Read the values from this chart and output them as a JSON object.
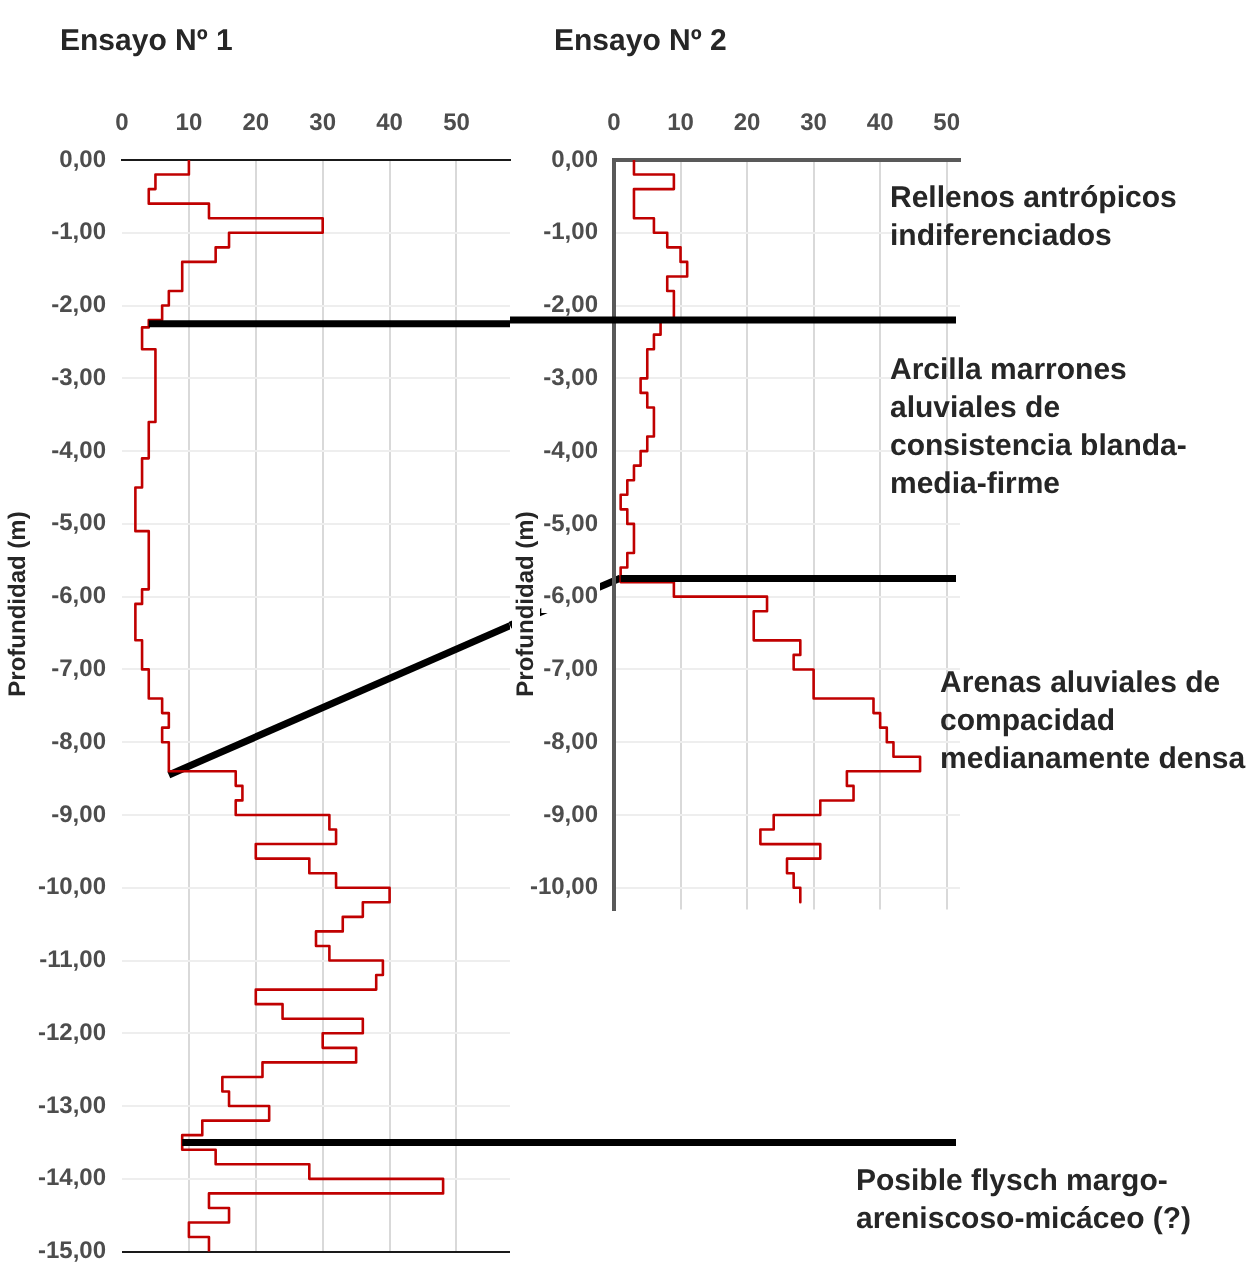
{
  "chart_data": [
    {
      "type": "line",
      "title": "Ensayo Nº 1",
      "ylabel": "Profundidad (m)",
      "xlim": [
        0,
        58
      ],
      "xticks": [
        0,
        10,
        20,
        30,
        40,
        50
      ],
      "ylim": [
        -15,
        0
      ],
      "yticks": [
        {
          "value": 0,
          "label": "0,00"
        },
        {
          "value": -1,
          "label": "-1,00"
        },
        {
          "value": -2,
          "label": "-2,00"
        },
        {
          "value": -3,
          "label": "-3,00"
        },
        {
          "value": -4,
          "label": "-4,00"
        },
        {
          "value": -5,
          "label": "-5,00"
        },
        {
          "value": -6,
          "label": "-6,00"
        },
        {
          "value": -7,
          "label": "-7,00"
        },
        {
          "value": -8,
          "label": "-8,00"
        },
        {
          "value": -9,
          "label": "-9,00"
        },
        {
          "value": -10,
          "label": "-10,00"
        },
        {
          "value": -11,
          "label": "-11,00"
        },
        {
          "value": -12,
          "label": "-12,00"
        },
        {
          "value": -13,
          "label": "-13,00"
        },
        {
          "value": -14,
          "label": "-14,00"
        },
        {
          "value": -15,
          "label": "-15,00"
        }
      ],
      "grid": true,
      "series": [
        {
          "color": "#c00000",
          "x": [
            10,
            10,
            5,
            5,
            4,
            4,
            13,
            13,
            30,
            30,
            16,
            16,
            14,
            14,
            9,
            9,
            7,
            7,
            6,
            6,
            4,
            4,
            3,
            3,
            5,
            5,
            4,
            4,
            3,
            3,
            2,
            2,
            4,
            4,
            3,
            3,
            2,
            2,
            3,
            3,
            4,
            4,
            6,
            6,
            7,
            7,
            6,
            6,
            7,
            7,
            17,
            17,
            18,
            18,
            17,
            17,
            31,
            31,
            32,
            32,
            20,
            20,
            28,
            28,
            32,
            32,
            40,
            40,
            36,
            36,
            33,
            33,
            29,
            29,
            31,
            31,
            39,
            39,
            38,
            38,
            20,
            20,
            24,
            24,
            36,
            36,
            30,
            30,
            35,
            35,
            21,
            21,
            15,
            15,
            16,
            16,
            22,
            22,
            12,
            12,
            9,
            9,
            14,
            14,
            28,
            28,
            48,
            48,
            13,
            13,
            16,
            16,
            10,
            10,
            13,
            13
          ],
          "values": [
            0,
            -0.2,
            -0.2,
            -0.4,
            -0.4,
            -0.6,
            -0.6,
            -0.8,
            -0.8,
            -1,
            -1,
            -1.2,
            -1.2,
            -1.4,
            -1.4,
            -1.8,
            -1.8,
            -2,
            -2,
            -2.2,
            -2.2,
            -2.3,
            -2.3,
            -2.6,
            -2.6,
            -3.6,
            -3.6,
            -4.1,
            -4.1,
            -4.5,
            -4.5,
            -5.1,
            -5.1,
            -5.9,
            -5.9,
            -6.1,
            -6.1,
            -6.6,
            -6.6,
            -7,
            -7,
            -7.4,
            -7.4,
            -7.6,
            -7.6,
            -7.8,
            -7.8,
            -8,
            -8,
            -8.4,
            -8.4,
            -8.6,
            -8.6,
            -8.8,
            -8.8,
            -9,
            -9,
            -9.2,
            -9.2,
            -9.4,
            -9.4,
            -9.6,
            -9.6,
            -9.8,
            -9.8,
            -10,
            -10,
            -10.2,
            -10.2,
            -10.4,
            -10.4,
            -10.6,
            -10.6,
            -10.8,
            -10.8,
            -11,
            -11,
            -11.2,
            -11.2,
            -11.4,
            -11.4,
            -11.6,
            -11.6,
            -11.8,
            -11.8,
            -12,
            -12,
            -12.2,
            -12.2,
            -12.4,
            -12.4,
            -12.6,
            -12.6,
            -12.8,
            -12.8,
            -13,
            -13,
            -13.2,
            -13.2,
            -13.4,
            -13.4,
            -13.6,
            -13.6,
            -13.8,
            -13.8,
            -14,
            -14,
            -14.2,
            -14.2,
            -14.4,
            -14.4,
            -14.6,
            -14.6,
            -14.8,
            -14.8,
            -15
          ]
        },
        {
          "type": "line",
          "color": "#000000",
          "x": [
            7,
            58
          ],
          "values": [
            -8.45,
            -6.4
          ]
        }
      ],
      "ref_lines": [
        {
          "axis": "y",
          "value": -2.25,
          "color": "#000000"
        },
        {
          "axis": "y",
          "value": -13.5,
          "color": "#000000"
        }
      ],
      "annotations": [
        "Posible flysch margo-\nareniscoso-micáceo (?)"
      ]
    },
    {
      "type": "line",
      "title": "Ensayo Nº 2",
      "ylabel": "Profundidad (m)",
      "xlim": [
        0,
        52
      ],
      "xticks": [
        0,
        10,
        20,
        30,
        40,
        50
      ],
      "ylim": [
        -10.3,
        0
      ],
      "yticks": [
        {
          "value": 0,
          "label": "0,00"
        },
        {
          "value": -1,
          "label": "-1,00"
        },
        {
          "value": -2,
          "label": "-2,00"
        },
        {
          "value": -3,
          "label": "-3,00"
        },
        {
          "value": -4,
          "label": "-4,00"
        },
        {
          "value": -5,
          "label": "-5,00"
        },
        {
          "value": -6,
          "label": "-6,00"
        },
        {
          "value": -7,
          "label": "-7,00"
        },
        {
          "value": -8,
          "label": "-8,00"
        },
        {
          "value": -9,
          "label": "-9,00"
        },
        {
          "value": -10,
          "label": "-10,00"
        }
      ],
      "grid": true,
      "series": [
        {
          "color": "#c00000",
          "x": [
            3,
            3,
            9,
            9,
            3,
            3,
            6,
            6,
            8,
            8,
            10,
            10,
            11,
            11,
            8,
            8,
            9,
            9,
            7,
            7,
            6,
            6,
            5,
            5,
            4,
            4,
            5,
            5,
            6,
            6,
            5,
            5,
            4,
            4,
            3,
            3,
            2,
            2,
            1,
            1,
            2,
            2,
            3,
            3,
            2,
            2,
            1,
            1,
            9,
            9,
            23,
            23,
            21,
            21,
            28,
            28,
            27,
            27,
            30,
            30,
            39,
            39,
            40,
            40,
            41,
            41,
            42,
            42,
            46,
            46,
            35,
            35,
            36,
            36,
            31,
            31,
            24,
            24,
            22,
            22,
            31,
            31,
            26,
            26,
            27,
            27,
            28,
            28
          ],
          "values": [
            0,
            -0.2,
            -0.2,
            -0.4,
            -0.4,
            -0.8,
            -0.8,
            -1,
            -1,
            -1.2,
            -1.2,
            -1.4,
            -1.4,
            -1.6,
            -1.6,
            -1.8,
            -1.8,
            -2.2,
            -2.2,
            -2.4,
            -2.4,
            -2.6,
            -2.6,
            -3,
            -3,
            -3.2,
            -3.2,
            -3.4,
            -3.4,
            -3.8,
            -3.8,
            -4,
            -4,
            -4.2,
            -4.2,
            -4.4,
            -4.4,
            -4.6,
            -4.6,
            -4.8,
            -4.8,
            -5,
            -5,
            -5.4,
            -5.4,
            -5.6,
            -5.6,
            -5.8,
            -5.8,
            -6,
            -6,
            -6.2,
            -6.2,
            -6.6,
            -6.6,
            -6.8,
            -6.8,
            -7,
            -7,
            -7.4,
            -7.4,
            -7.6,
            -7.6,
            -7.8,
            -7.8,
            -8,
            -8,
            -8.2,
            -8.2,
            -8.4,
            -8.4,
            -8.6,
            -8.6,
            -8.8,
            -8.8,
            -9,
            -9,
            -9.2,
            -9.2,
            -9.4,
            -9.4,
            -9.6,
            -9.6,
            -9.8,
            -9.8,
            -10,
            -10,
            -10.2
          ]
        }
      ],
      "ref_lines": [
        {
          "axis": "y",
          "value": -2.2,
          "color": "#000000"
        },
        {
          "axis": "y",
          "value": -5.75,
          "color": "#000000"
        }
      ],
      "annotations": [
        "Rellenos antrópicos\nindiferenciados",
        "Arcilla marrones\naluviales de\nconsistencia blanda-\nmedia-firme",
        "Arenas aluviales de\ncompacidad\nmedianamente densa"
      ]
    }
  ]
}
